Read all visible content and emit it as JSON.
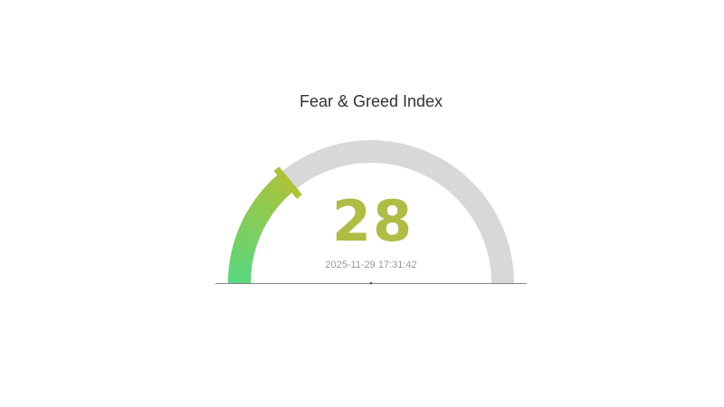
{
  "page": {
    "background": "#ffffff"
  },
  "chart_data": {
    "type": "gauge",
    "title": "Fear & Greed Index",
    "value": 28,
    "min": 0,
    "max": 100,
    "arc_span_deg": 180,
    "timestamp": "2025-11-29 17:31:42",
    "grid": false,
    "legend_position": "none",
    "tick_labels": [],
    "colors": {
      "arc_gradient_start": "#57d97f",
      "arc_gradient_end": "#a9c33c",
      "pointer": "#afc238",
      "track": "#d8d8d8",
      "value_text": "#b0bd44",
      "timestamp_text": "#999999",
      "title_text": "#333333",
      "baseline": "#848484",
      "center_dot": "#555555"
    }
  }
}
